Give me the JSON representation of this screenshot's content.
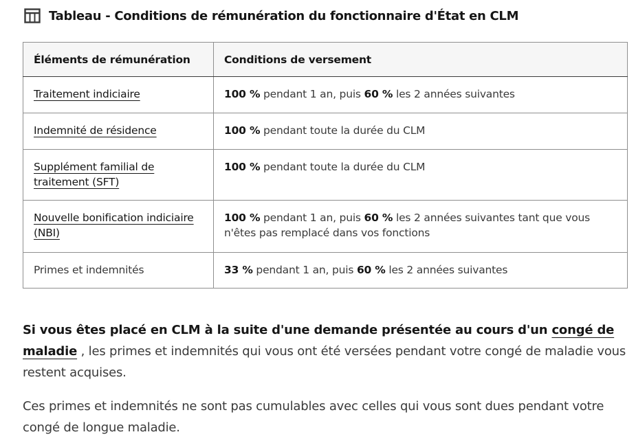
{
  "title": {
    "icon": "table-icon",
    "text": "Tableau - Conditions de rémunération du fonctionnaire d'État en CLM"
  },
  "table": {
    "headers": [
      "Éléments de rémunération",
      "Conditions de versement"
    ],
    "rows": [
      {
        "element": "Traitement indiciaire",
        "link": true,
        "conditions": [
          "100 %",
          " pendant 1 an, puis ",
          "60 %",
          " les 2 années suivantes"
        ]
      },
      {
        "element": "Indemnité de résidence",
        "link": true,
        "conditions": [
          "100 %",
          " pendant toute la durée du CLM"
        ]
      },
      {
        "element": "Supplément familial de traitement (SFT)",
        "link": true,
        "conditions": [
          "100 %",
          " pendant toute la durée du CLM"
        ]
      },
      {
        "element": "Nouvelle bonification indiciaire (NBI)",
        "link": true,
        "conditions": [
          "100 %",
          " pendant 1 an, puis ",
          "60 %",
          " les 2 années suivantes tant que vous n'êtes pas remplacé dans vos fonctions"
        ]
      },
      {
        "element": "Primes et indemnités",
        "link": false,
        "conditions": [
          "33 %",
          " pendant 1 an, puis ",
          "60 %",
          " les 2 années suivantes"
        ]
      }
    ]
  },
  "paragraphs": {
    "p1_bold": "Si vous êtes placé en CLM à la suite d'une demande présentée au cours d'un ",
    "p1_link": "congé de maladie",
    "p1_rest": " , les primes et indemnités qui vous ont été versées pendant votre congé de maladie vous restent acquises.",
    "p2": "Ces primes et indemnités ne sont pas cumulables avec celles qui vous sont dues pendant votre congé de longue maladie."
  }
}
